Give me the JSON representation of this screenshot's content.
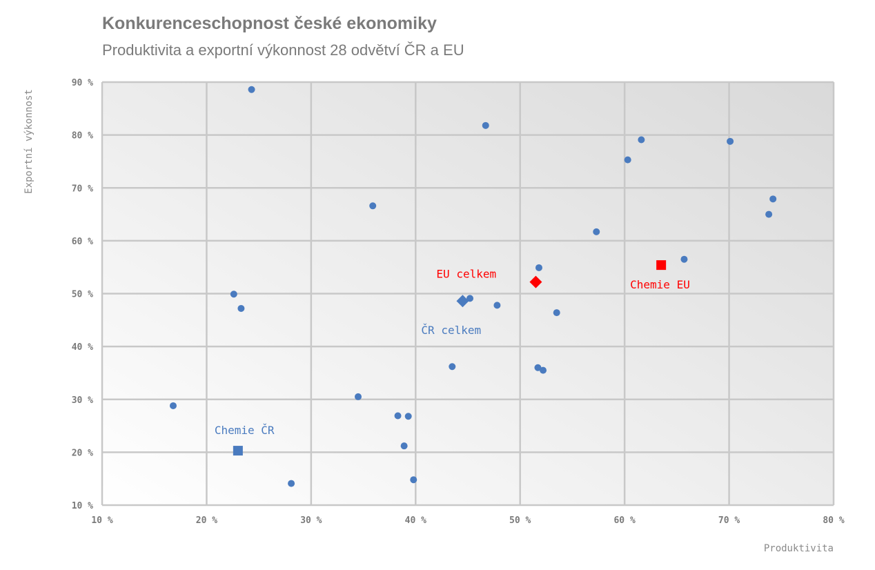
{
  "chart_data": {
    "type": "scatter",
    "title": "Konkurenceschopnost české ekonomiky",
    "subtitle": "Produktivita a exportní výkonnost 28 odvětví ČR a EU",
    "xlabel": "Produktivita",
    "ylabel": "Exportní výkonnost",
    "xlim": [
      10,
      80
    ],
    "ylim": [
      10,
      90
    ],
    "xticks": [
      "10 %",
      "20 %",
      "30 %",
      "40 %",
      "50 %",
      "60 %",
      "70 %",
      "80 %"
    ],
    "yticks": [
      "10 %",
      "20 %",
      "30 %",
      "40 %",
      "50 %",
      "60 %",
      "70 %",
      "80 %",
      "90 %"
    ],
    "grid": true,
    "points": [
      {
        "x": 24.3,
        "y": 88.6
      },
      {
        "x": 46.7,
        "y": 81.8
      },
      {
        "x": 61.6,
        "y": 79.1
      },
      {
        "x": 70.1,
        "y": 78.8
      },
      {
        "x": 60.3,
        "y": 75.3
      },
      {
        "x": 74.2,
        "y": 67.9
      },
      {
        "x": 35.9,
        "y": 66.6
      },
      {
        "x": 73.8,
        "y": 65.0
      },
      {
        "x": 57.3,
        "y": 61.7
      },
      {
        "x": 65.7,
        "y": 56.5
      },
      {
        "x": 51.8,
        "y": 54.9
      },
      {
        "x": 22.6,
        "y": 49.9
      },
      {
        "x": 45.2,
        "y": 49.1
      },
      {
        "x": 47.8,
        "y": 47.8
      },
      {
        "x": 23.3,
        "y": 47.2
      },
      {
        "x": 53.5,
        "y": 46.4
      },
      {
        "x": 43.5,
        "y": 36.2
      },
      {
        "x": 51.7,
        "y": 36.0
      },
      {
        "x": 52.2,
        "y": 35.5
      },
      {
        "x": 16.8,
        "y": 28.8
      },
      {
        "x": 34.5,
        "y": 30.5
      },
      {
        "x": 38.3,
        "y": 26.9
      },
      {
        "x": 39.3,
        "y": 26.8
      },
      {
        "x": 38.9,
        "y": 21.2
      },
      {
        "x": 28.1,
        "y": 14.1
      },
      {
        "x": 39.8,
        "y": 14.8
      }
    ],
    "highlights": [
      {
        "label": "ČR celkem",
        "x": 44.5,
        "y": 48.6,
        "shape": "diamond",
        "color": "#4a7bbf"
      },
      {
        "label": "EU celkem",
        "x": 51.5,
        "y": 52.2,
        "shape": "diamond",
        "color": "#ff0000"
      },
      {
        "label": "Chemie ČR",
        "x": 23.0,
        "y": 20.3,
        "shape": "square",
        "color": "#4a7bbf"
      },
      {
        "label": "Chemie EU",
        "x": 63.5,
        "y": 55.4,
        "shape": "square",
        "color": "#ff0000"
      }
    ],
    "colors": {
      "points": "#4a7bbf",
      "eu": "#ff0000",
      "cr": "#4a7bbf"
    }
  }
}
